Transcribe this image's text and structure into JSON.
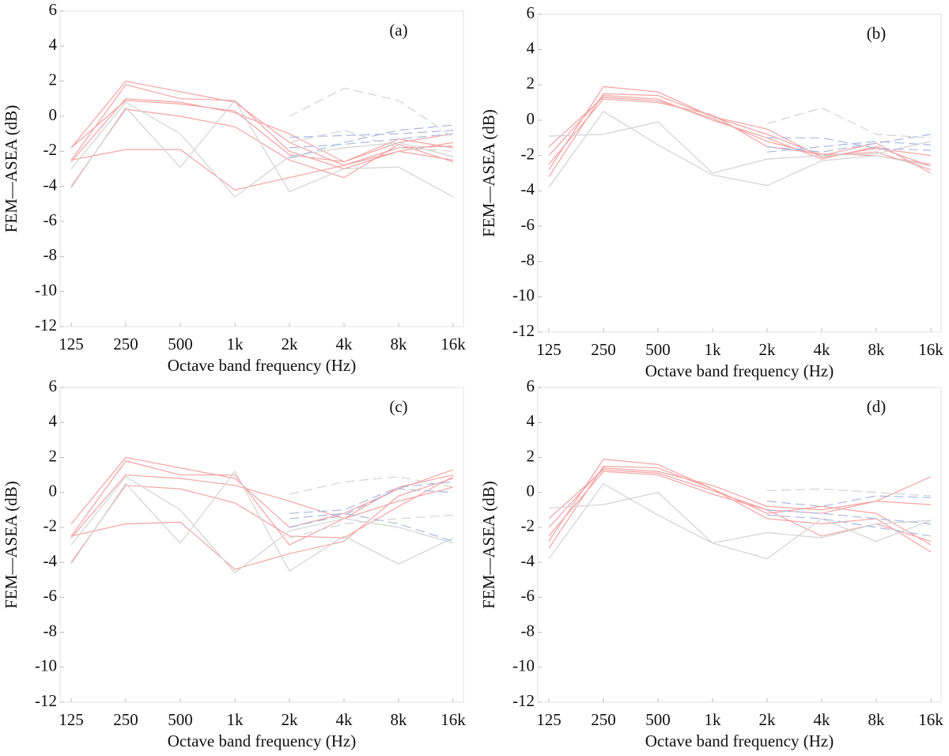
{
  "chart_data": [
    {
      "type": "line",
      "label": "(a)",
      "xlabel": "Octave band frequency (Hz)",
      "ylabel": "FEM—ASEA (dB)",
      "categories": [
        "125",
        "250",
        "500",
        "1k",
        "2k",
        "4k",
        "8k",
        "16k"
      ],
      "ylim": [
        -12,
        6
      ],
      "yticks": [
        6,
        4,
        2,
        0,
        -2,
        -4,
        -6,
        -8,
        -10,
        -12
      ],
      "series": [
        {
          "color": "#f4a3a3",
          "dash": false,
          "values": [
            -1.8,
            2.0,
            1.4,
            0.8,
            -1.5,
            -2.8,
            -1.8,
            -1.7
          ]
        },
        {
          "color": "#f4a3a3",
          "dash": false,
          "values": [
            -2.5,
            1.8,
            1.0,
            0.9,
            -2.0,
            -3.0,
            -2.0,
            -1.5
          ]
        },
        {
          "color": "#f4a3a3",
          "dash": false,
          "values": [
            -2.6,
            1.0,
            0.8,
            0.2,
            -1.0,
            -2.6,
            -1.5,
            -1.0
          ]
        },
        {
          "color": "#f4a3a3",
          "dash": false,
          "values": [
            -4.0,
            0.4,
            0.0,
            -0.6,
            -2.5,
            -3.5,
            -1.6,
            -2.6
          ]
        },
        {
          "color": "#f4a3a3",
          "dash": false,
          "values": [
            -2.5,
            -1.9,
            -1.9,
            -4.2,
            -3.5,
            -2.8,
            -2.0,
            -2.5
          ]
        },
        {
          "color": "#f4a3a3",
          "dash": false,
          "values": [
            -1.8,
            0.9,
            0.7,
            0.3,
            -2.2,
            -2.6,
            -1.3,
            -1.8
          ]
        },
        {
          "color": "#d2d2d2",
          "dash": false,
          "values": [
            -4.1,
            0.5,
            -2.9,
            0.9,
            -4.3,
            -3.0,
            -2.9,
            -4.6
          ]
        },
        {
          "color": "#d2d2d2",
          "dash": false,
          "values": [
            -3.0,
            0.8,
            -1.0,
            -4.6,
            -2.3,
            -1.8,
            -1.5,
            -2.3
          ]
        },
        {
          "color": "#aab8e0",
          "dash": true,
          "values": [
            null,
            null,
            null,
            null,
            -1.2,
            -1.1,
            -1.0,
            -0.8
          ]
        },
        {
          "color": "#aab8e0",
          "dash": true,
          "values": [
            null,
            null,
            null,
            null,
            -1.8,
            -1.6,
            -1.3,
            -1.0
          ]
        },
        {
          "color": "#aab8e0",
          "dash": true,
          "values": [
            null,
            null,
            null,
            null,
            -2.4,
            -1.5,
            -0.8,
            -0.5
          ]
        },
        {
          "color": "#d2d2d2",
          "dash": true,
          "values": [
            null,
            null,
            null,
            null,
            0.0,
            1.6,
            0.9,
            -1.2
          ]
        },
        {
          "color": "#d2d2d2",
          "dash": true,
          "values": [
            null,
            null,
            null,
            null,
            -1.5,
            -0.8,
            -1.8,
            -2.0
          ]
        }
      ]
    },
    {
      "type": "line",
      "label": "(b)",
      "xlabel": "Octave band frequency (Hz)",
      "ylabel": "FEM—ASEA (dB)",
      "categories": [
        "125",
        "250",
        "500",
        "1k",
        "2k",
        "4k",
        "8k",
        "16k"
      ],
      "ylim": [
        -12,
        6
      ],
      "yticks": [
        6,
        4,
        2,
        0,
        -2,
        -4,
        -6,
        -8,
        -10,
        -12
      ],
      "series": [
        {
          "color": "#f4a3a3",
          "dash": false,
          "values": [
            -2.8,
            1.9,
            1.6,
            0.2,
            -0.8,
            -2.0,
            -1.8,
            -2.8
          ]
        },
        {
          "color": "#f4a3a3",
          "dash": false,
          "values": [
            -2.0,
            1.4,
            1.2,
            0.0,
            -1.0,
            -2.2,
            -1.5,
            -2.6
          ]
        },
        {
          "color": "#f4a3a3",
          "dash": false,
          "values": [
            -1.5,
            1.3,
            1.1,
            0.1,
            -1.2,
            -2.0,
            -1.3,
            -3.0
          ]
        },
        {
          "color": "#f4a3a3",
          "dash": false,
          "values": [
            -2.5,
            1.2,
            1.0,
            0.3,
            -1.5,
            -1.9,
            -2.0,
            -2.5
          ]
        },
        {
          "color": "#f4a3a3",
          "dash": false,
          "values": [
            -3.2,
            1.5,
            1.4,
            0.2,
            -0.5,
            -2.1,
            -1.6,
            -2.0
          ]
        },
        {
          "color": "#d2d2d2",
          "dash": false,
          "values": [
            -3.8,
            0.5,
            -1.4,
            -3.1,
            -3.7,
            -2.3,
            -2.0,
            -2.6
          ]
        },
        {
          "color": "#d2d2d2",
          "dash": false,
          "values": [
            -0.9,
            -0.8,
            -0.1,
            -3.0,
            -2.2,
            -2.0,
            -1.9,
            -1.2
          ]
        },
        {
          "color": "#aab8e0",
          "dash": true,
          "values": [
            null,
            null,
            null,
            null,
            -1.8,
            -1.5,
            -1.2,
            -1.4
          ]
        },
        {
          "color": "#aab8e0",
          "dash": true,
          "values": [
            null,
            null,
            null,
            null,
            -1.0,
            -1.0,
            -1.6,
            -1.7
          ]
        },
        {
          "color": "#aab8e0",
          "dash": true,
          "values": [
            null,
            null,
            null,
            null,
            -1.5,
            -1.8,
            -1.3,
            -0.8
          ]
        },
        {
          "color": "#d2d2d2",
          "dash": true,
          "values": [
            null,
            null,
            null,
            null,
            -0.2,
            0.7,
            -0.8,
            -1.0
          ]
        }
      ]
    },
    {
      "type": "line",
      "label": "(c)",
      "xlabel": "Octave band frequency (Hz)",
      "ylabel": "FEM—ASEA (dB)",
      "categories": [
        "125",
        "250",
        "500",
        "1k",
        "2k",
        "4k",
        "8k",
        "16k"
      ],
      "ylim": [
        -12,
        6
      ],
      "yticks": [
        6,
        4,
        2,
        0,
        -2,
        -4,
        -6,
        -8,
        -10,
        -12
      ],
      "series": [
        {
          "color": "#f4a3a3",
          "dash": false,
          "values": [
            -1.8,
            2.0,
            1.4,
            0.8,
            -2.0,
            -1.2,
            0.2,
            1.3
          ]
        },
        {
          "color": "#f4a3a3",
          "dash": false,
          "values": [
            -2.5,
            1.8,
            1.0,
            1.0,
            -3.0,
            -1.5,
            0.3,
            1.0
          ]
        },
        {
          "color": "#f4a3a3",
          "dash": false,
          "values": [
            -2.6,
            1.0,
            0.8,
            0.4,
            -0.5,
            -1.5,
            -0.5,
            0.3
          ]
        },
        {
          "color": "#f4a3a3",
          "dash": false,
          "values": [
            -4.0,
            0.4,
            0.2,
            -0.6,
            -2.5,
            -2.6,
            -0.8,
            0.9
          ]
        },
        {
          "color": "#f4a3a3",
          "dash": false,
          "values": [
            -2.5,
            -1.8,
            -1.7,
            -4.4,
            -3.5,
            -2.8,
            -0.2,
            0.8
          ]
        },
        {
          "color": "#d2d2d2",
          "dash": false,
          "values": [
            -4.1,
            0.5,
            -2.9,
            1.2,
            -4.5,
            -2.5,
            -4.1,
            -2.6
          ]
        },
        {
          "color": "#d2d2d2",
          "dash": false,
          "values": [
            -3.0,
            0.9,
            -1.0,
            -4.6,
            -2.2,
            -1.5,
            -2.0,
            -2.9
          ]
        },
        {
          "color": "#aab8e0",
          "dash": true,
          "values": [
            null,
            null,
            null,
            null,
            -1.5,
            -1.2,
            -1.8,
            -2.8
          ]
        },
        {
          "color": "#aab8e0",
          "dash": true,
          "values": [
            null,
            null,
            null,
            null,
            -2.0,
            -1.3,
            0.2,
            0.0
          ]
        },
        {
          "color": "#aab8e0",
          "dash": true,
          "values": [
            null,
            null,
            null,
            null,
            -1.2,
            -1.0,
            0.3,
            0.6
          ]
        },
        {
          "color": "#d2d2d2",
          "dash": true,
          "values": [
            null,
            null,
            null,
            null,
            -0.1,
            0.6,
            0.9,
            0.3
          ]
        },
        {
          "color": "#d2d2d2",
          "dash": true,
          "values": [
            null,
            null,
            null,
            null,
            -2.6,
            -1.8,
            -1.5,
            -1.3
          ]
        }
      ]
    },
    {
      "type": "line",
      "label": "(d)",
      "xlabel": "Octave band frequency (Hz)",
      "ylabel": "FEM—ASEA (dB)",
      "categories": [
        "125",
        "250",
        "500",
        "1k",
        "2k",
        "4k",
        "8k",
        "16k"
      ],
      "ylim": [
        -12,
        6
      ],
      "yticks": [
        6,
        4,
        2,
        0,
        -2,
        -4,
        -6,
        -8,
        -10,
        -12
      ],
      "series": [
        {
          "color": "#f4a3a3",
          "dash": false,
          "values": [
            -2.8,
            1.9,
            1.6,
            0.2,
            -1.2,
            -0.8,
            -1.2,
            -3.0
          ]
        },
        {
          "color": "#f4a3a3",
          "dash": false,
          "values": [
            -2.0,
            1.4,
            1.2,
            0.4,
            -0.8,
            -1.0,
            -0.5,
            0.9
          ]
        },
        {
          "color": "#f4a3a3",
          "dash": false,
          "values": [
            -1.5,
            1.3,
            1.1,
            0.1,
            -1.0,
            -1.2,
            -0.5,
            -0.7
          ]
        },
        {
          "color": "#f4a3a3",
          "dash": false,
          "values": [
            -3.2,
            1.5,
            1.4,
            0.2,
            -1.5,
            -1.8,
            -1.5,
            -3.4
          ]
        },
        {
          "color": "#f4a3a3",
          "dash": false,
          "values": [
            -2.5,
            1.2,
            1.0,
            -0.1,
            -1.0,
            -2.5,
            -1.8,
            -2.8
          ]
        },
        {
          "color": "#d2d2d2",
          "dash": false,
          "values": [
            -3.8,
            0.5,
            -1.3,
            -2.9,
            -3.8,
            -1.5,
            -2.8,
            -1.6
          ]
        },
        {
          "color": "#d2d2d2",
          "dash": false,
          "values": [
            -0.9,
            -0.7,
            0.0,
            -2.9,
            -2.3,
            -2.6,
            -1.8,
            -1.6
          ]
        },
        {
          "color": "#aab8e0",
          "dash": true,
          "values": [
            null,
            null,
            null,
            null,
            -1.3,
            -1.5,
            -2.0,
            -2.5
          ]
        },
        {
          "color": "#aab8e0",
          "dash": true,
          "values": [
            null,
            null,
            null,
            null,
            -1.0,
            -1.2,
            -1.5,
            -1.8
          ]
        },
        {
          "color": "#aab8e0",
          "dash": true,
          "values": [
            null,
            null,
            null,
            null,
            -0.5,
            -0.8,
            -0.2,
            -0.3
          ]
        },
        {
          "color": "#d2d2d2",
          "dash": true,
          "values": [
            null,
            null,
            null,
            null,
            0.1,
            0.2,
            0.0,
            -0.2
          ]
        }
      ]
    }
  ]
}
